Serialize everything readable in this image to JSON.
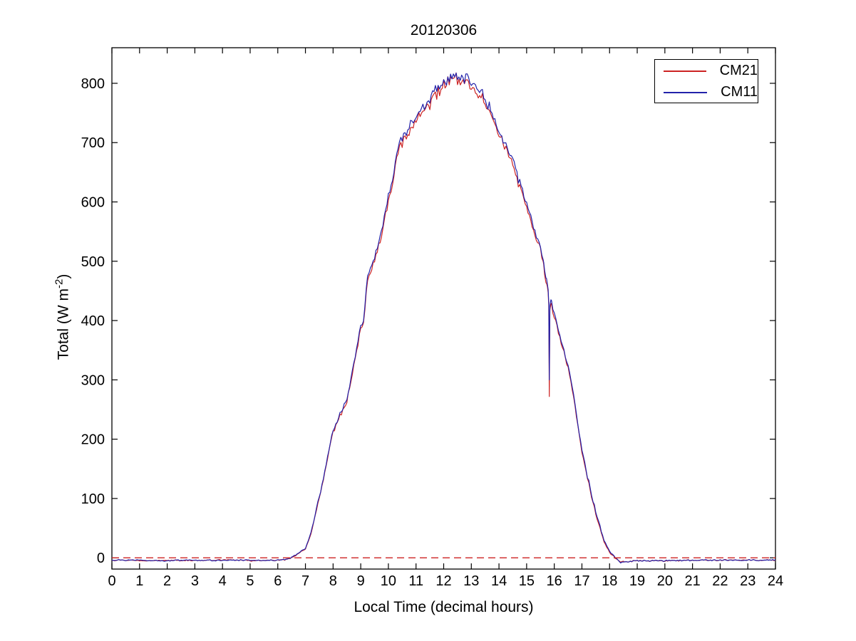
{
  "chart_data": {
    "type": "line",
    "title": "20120306",
    "xlabel": "Local Time (decimal hours)",
    "ylabel": "Total (W m^-2)",
    "ylabel_parts": {
      "pre": "Total (W m",
      "sup": "-2",
      "post": ")"
    },
    "xlim": [
      0,
      24
    ],
    "ylim": [
      -19,
      860
    ],
    "x_ticks": [
      0,
      1,
      2,
      3,
      4,
      5,
      6,
      7,
      8,
      9,
      10,
      11,
      12,
      13,
      14,
      15,
      16,
      17,
      18,
      19,
      20,
      21,
      22,
      23,
      24
    ],
    "y_ticks": [
      0,
      100,
      200,
      300,
      400,
      500,
      600,
      700,
      800
    ],
    "grid": false,
    "legend_position": "top-right",
    "axis_color": "#000000",
    "zero_line": {
      "value": 0,
      "style": "dashed",
      "color": "#cc2222"
    },
    "noise": {
      "seed": 1001,
      "step_h": 0.05,
      "quiet_zone": [
        15.77,
        15.9
      ]
    },
    "series": [
      {
        "name": "CM21",
        "color": "#cc2222",
        "anchors_h": [
          0,
          0.5,
          1,
          1.5,
          2,
          2.5,
          3,
          3.5,
          4,
          4.5,
          5,
          5.5,
          6,
          6.3,
          6.5,
          6.7,
          7,
          7.2,
          7.4,
          7.6,
          7.8,
          8,
          8.3,
          8.5,
          8.7,
          9,
          9.1,
          9.25,
          9.4,
          9.6,
          9.8,
          10,
          10.2,
          10.4,
          10.6,
          10.8,
          11,
          11.2,
          11.4,
          11.6,
          11.8,
          12,
          12.2,
          12.4,
          12.6,
          12.8,
          13,
          13.2,
          13.5,
          13.8,
          14,
          14.3,
          14.6,
          14.9,
          15.1,
          15.3,
          15.5,
          15.62,
          15.72,
          15.78,
          15.8,
          15.82,
          15.84,
          15.88,
          15.95,
          16.1,
          16.3,
          16.5,
          16.7,
          16.85,
          17,
          17.2,
          17.4,
          17.6,
          17.8,
          18,
          18.2,
          18.4,
          19,
          20,
          21,
          22,
          23,
          24
        ],
        "anchors_v": [
          -4,
          -4,
          -5,
          -5,
          -4,
          -5,
          -4,
          -4,
          -4,
          -4,
          -5,
          -4,
          -4,
          -3,
          0,
          6,
          15,
          40,
          80,
          122,
          168,
          213,
          244,
          263,
          311,
          388,
          399,
          465,
          487,
          519,
          556,
          601,
          644,
          694,
          706,
          722,
          738,
          748,
          761,
          771,
          785,
          796,
          803,
          808,
          803,
          800,
          796,
          783,
          768,
          735,
          711,
          684,
          649,
          606,
          576,
          546,
          516,
          490,
          462,
          447,
          425,
          272,
          418,
          428,
          414,
          387,
          352,
          321,
          268,
          224,
          178,
          134,
          94,
          58,
          27,
          9,
          0,
          -7,
          -5,
          -5,
          -4,
          -4,
          -4,
          -4
        ]
      },
      {
        "name": "CM11",
        "color": "#2222aa",
        "anchors_h": [
          0,
          0.5,
          1,
          1.5,
          2,
          2.5,
          3,
          3.5,
          4,
          4.5,
          5,
          5.5,
          6,
          6.3,
          6.5,
          6.7,
          7,
          7.2,
          7.4,
          7.6,
          7.8,
          8,
          8.3,
          8.5,
          8.7,
          9,
          9.1,
          9.25,
          9.4,
          9.6,
          9.8,
          10,
          10.2,
          10.4,
          10.6,
          10.8,
          11,
          11.2,
          11.4,
          11.6,
          11.8,
          12,
          12.2,
          12.4,
          12.6,
          12.8,
          13,
          13.2,
          13.5,
          13.8,
          14,
          14.3,
          14.6,
          14.9,
          15.1,
          15.3,
          15.5,
          15.62,
          15.72,
          15.78,
          15.8,
          15.82,
          15.84,
          15.88,
          15.95,
          16.1,
          16.3,
          16.5,
          16.7,
          16.85,
          17,
          17.2,
          17.4,
          17.6,
          17.8,
          18,
          18.2,
          18.4,
          19,
          20,
          21,
          22,
          23,
          24
        ],
        "anchors_v": [
          -4,
          -4,
          -4,
          -5,
          -5,
          -4,
          -4,
          -4,
          -5,
          -4,
          -4,
          -4,
          -4,
          -3,
          1,
          7,
          16,
          42,
          82,
          124,
          170,
          216,
          247,
          266,
          315,
          392,
          403,
          470,
          492,
          525,
          562,
          607,
          650,
          700,
          712,
          728,
          745,
          755,
          768,
          778,
          792,
          803,
          810,
          815,
          810,
          807,
          803,
          790,
          775,
          742,
          718,
          690,
          655,
          612,
          582,
          552,
          522,
          495,
          468,
          452,
          430,
          300,
          425,
          435,
          420,
          392,
          357,
          326,
          272,
          228,
          182,
          138,
          97,
          61,
          29,
          11,
          1,
          -8,
          -5,
          -5,
          -4,
          -4,
          -4,
          -4
        ]
      }
    ]
  }
}
